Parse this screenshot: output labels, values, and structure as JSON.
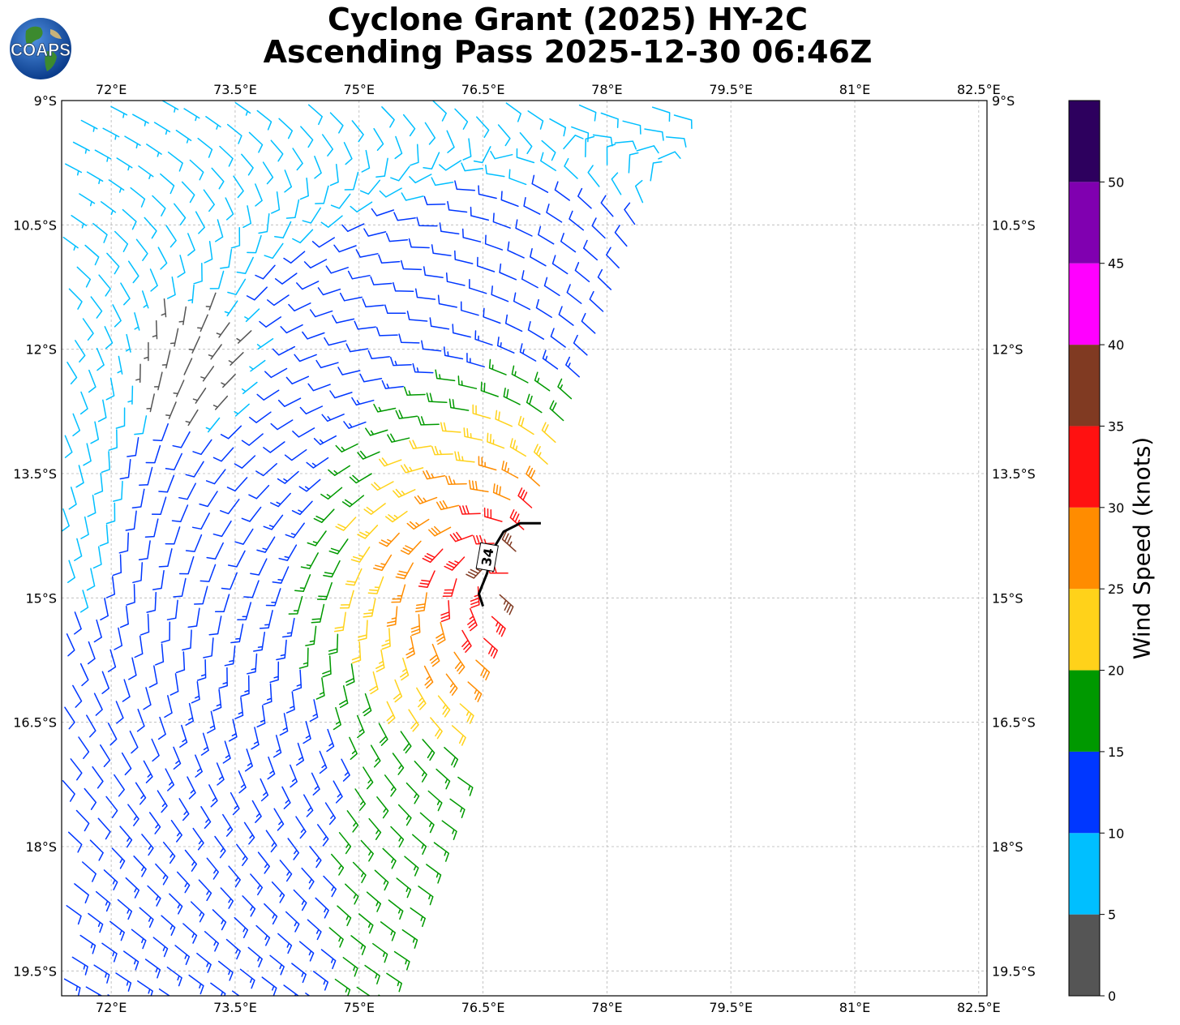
{
  "title": {
    "line1": "Cyclone Grant (2025) HY-2C",
    "line2": "Ascending Pass 2025-12-30 06:46Z"
  },
  "logo": {
    "text": "COAPS",
    "icon": "globe-icon"
  },
  "map": {
    "lon_range": [
      71.4,
      82.6
    ],
    "lat_range": [
      -19.8,
      -9.0
    ],
    "lon_ticks": [
      "72°E",
      "73.5°E",
      "75°E",
      "76.5°E",
      "78°E",
      "79.5°E",
      "81°E",
      "82.5°E"
    ],
    "lat_ticks": [
      "9°S",
      "10.5°S",
      "12°S",
      "13.5°S",
      "15°S",
      "16.5°S",
      "18°S",
      "19.5°S"
    ],
    "grid": true,
    "center": {
      "lon": 76.8,
      "lat": -14.7
    },
    "swath_edge": {
      "lat_top": -9.0,
      "lon_top": 79.0,
      "lat_bottom": -19.8,
      "lon_bottom": 75.3
    },
    "contour": {
      "label": "34",
      "color": "#000000",
      "points": [
        [
          77.2,
          -14.1
        ],
        [
          76.95,
          -14.1
        ],
        [
          76.75,
          -14.2
        ],
        [
          76.6,
          -14.45
        ],
        [
          76.55,
          -14.7
        ],
        [
          76.45,
          -14.95
        ],
        [
          76.5,
          -15.1
        ]
      ]
    }
  },
  "colorbar": {
    "label": "Wind Speed (knots)",
    "ticks": [
      "0",
      "5",
      "10",
      "15",
      "20",
      "25",
      "30",
      "35",
      "40",
      "45",
      "50"
    ],
    "colors": [
      "#555555",
      "#00bfff",
      "#0037ff",
      "#009900",
      "#ffd21a",
      "#ff8c00",
      "#ff1111",
      "#803a22",
      "#ff00ff",
      "#8000b0",
      "#2d005e"
    ]
  }
}
